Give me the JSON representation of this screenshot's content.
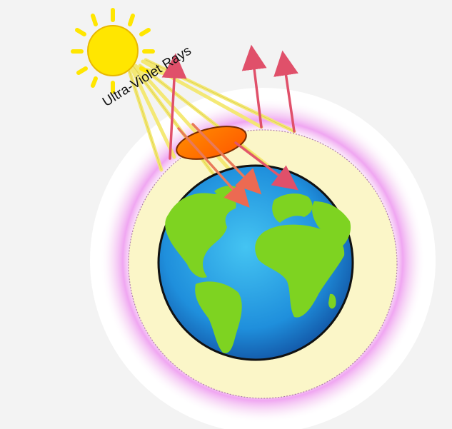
{
  "label": {
    "text": "Ultra-Violet Rays"
  },
  "colors": {
    "background": "#f3f3f3",
    "sun": "#ffe600",
    "sun_outline": "#e8b800",
    "atmosphere": "#fbf6c8",
    "glow": "#ee9cf0",
    "ocean": "#1e86d6",
    "land": "#7ed321",
    "ray": "#f2e874",
    "arrow": "#e0506a",
    "ozone_hole": "#ff6a00"
  },
  "icons": [
    "sun-icon",
    "earth-icon",
    "ozone-hole-icon"
  ]
}
